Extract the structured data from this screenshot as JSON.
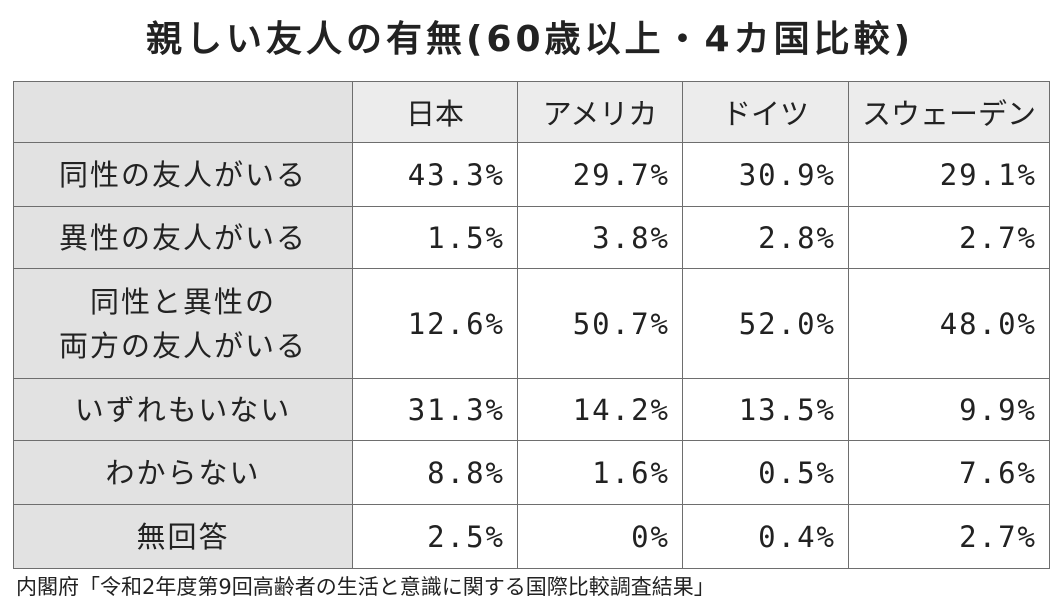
{
  "chart_data": {
    "type": "table",
    "title": "親しい友人の有無(60歳以上・4カ国比較)",
    "columns": [
      "日本",
      "アメリカ",
      "ドイツ",
      "スウェーデン"
    ],
    "rows": [
      {
        "label": [
          "同性の友人がいる"
        ],
        "values": [
          "43.3%",
          "29.7%",
          "30.9%",
          "29.1%"
        ]
      },
      {
        "label": [
          "異性の友人がいる"
        ],
        "values": [
          "1.5%",
          "3.8%",
          "2.8%",
          "2.7%"
        ]
      },
      {
        "label": [
          "同性と異性の",
          "両方の友人がいる"
        ],
        "values": [
          "12.6%",
          "50.7%",
          "52.0%",
          "48.0%"
        ]
      },
      {
        "label": [
          "いずれもいない"
        ],
        "values": [
          "31.3%",
          "14.2%",
          "13.5%",
          "9.9%"
        ]
      },
      {
        "label": [
          "わからない"
        ],
        "values": [
          "8.8%",
          "1.6%",
          "0.5%",
          "7.6%"
        ]
      },
      {
        "label": [
          "無回答"
        ],
        "values": [
          "2.5%",
          "0%",
          "0.4%",
          "2.7%"
        ]
      }
    ],
    "source": "内閣府「令和2年度第9回高齢者の生活と意識に関する国際比較調査結果」"
  }
}
